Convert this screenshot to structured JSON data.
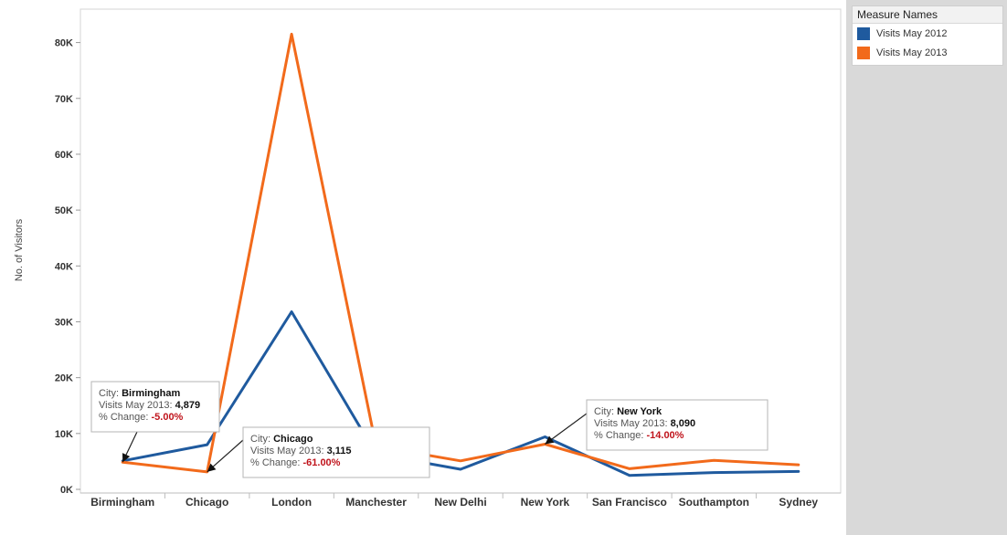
{
  "chart_data": {
    "type": "line",
    "title": "",
    "xlabel": "",
    "ylabel": "No. of Visitors",
    "categories": [
      "Birmingham",
      "Chicago",
      "London",
      "Manchester",
      "New Delhi",
      "New York",
      "San Francisco",
      "Southampton",
      "Sydney"
    ],
    "ylim": [
      0,
      85000
    ],
    "yticks": [
      0,
      10000,
      20000,
      30000,
      40000,
      50000,
      60000,
      70000,
      80000
    ],
    "ytick_labels": [
      "0K",
      "10K",
      "20K",
      "30K",
      "40K",
      "50K",
      "60K",
      "70K",
      "80K"
    ],
    "grid": false,
    "legend_position": "right",
    "series": [
      {
        "name": "Visits May 2012",
        "color": "#1f5a9e",
        "values": [
          5100,
          8000,
          31800,
          6300,
          3600,
          9400,
          2500,
          3000,
          3200
        ]
      },
      {
        "name": "Visits May 2013",
        "color": "#f26a1b",
        "values": [
          4879,
          3115,
          81500,
          7700,
          5100,
          8090,
          3700,
          5200,
          4400
        ]
      }
    ],
    "annotations": [
      {
        "category": "Birmingham",
        "city_label": "City: ",
        "city": "Birmingham",
        "visits_label": "Visits May 2013: ",
        "visits": "4,879",
        "change_label": "% Change: ",
        "change": "-5.00%"
      },
      {
        "category": "Chicago",
        "city_label": "City: ",
        "city": "Chicago",
        "visits_label": "Visits May 2013: ",
        "visits": "3,115",
        "change_label": "% Change: ",
        "change": "-61.00%"
      },
      {
        "category": "New York",
        "city_label": "City: ",
        "city": "New York",
        "visits_label": "Visits May 2013: ",
        "visits": "8,090",
        "change_label": "% Change: ",
        "change": "-14.00%"
      }
    ]
  },
  "legend": {
    "title": "Measure Names",
    "items": [
      {
        "label": "Visits May 2012",
        "color": "#1f5a9e"
      },
      {
        "label": "Visits May 2013",
        "color": "#f26a1b"
      }
    ]
  }
}
